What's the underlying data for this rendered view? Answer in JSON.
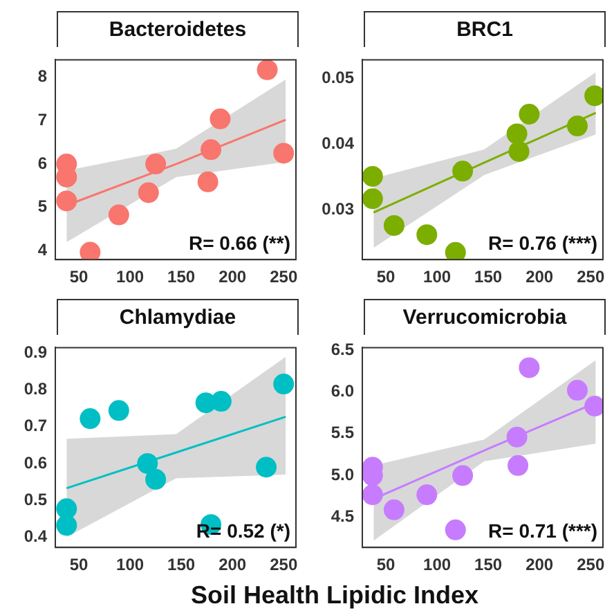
{
  "chart_data": [
    {
      "type": "scatter",
      "title": "Bacteroidetes",
      "xlim": [
        27,
        262
      ],
      "xticks": [
        50,
        100,
        150,
        200,
        250
      ],
      "ylim": [
        3.8,
        8.4
      ],
      "yticks": [
        4,
        5,
        6,
        7,
        8
      ],
      "line_style": "solid",
      "annotations": [
        "R= 0.66 (**)"
      ],
      "series": [
        {
          "marker": "circle",
          "color": "#f8766d",
          "x": [
            38,
            38,
            38,
            61,
            89,
            118,
            125,
            176,
            179,
            188,
            234,
            250
          ],
          "values": [
            6.0,
            5.7,
            5.15,
            3.97,
            4.83,
            5.34,
            6.0,
            5.59,
            6.33,
            7.04,
            8.17,
            6.25
          ]
        },
        {
          "type": "line",
          "color": "#f8766d",
          "x": [
            38,
            145,
            252
          ],
          "values": [
            5.05,
            6.0,
            7.02
          ],
          "lower": [
            4.2,
            5.7,
            6.05
          ],
          "upper": [
            5.85,
            6.35,
            7.95
          ]
        }
      ]
    },
    {
      "type": "scatter",
      "title": "BRC1",
      "xlim": [
        27,
        262
      ],
      "xticks": [
        50,
        100,
        150,
        200,
        250
      ],
      "ylim": [
        0.0224,
        0.0529
      ],
      "yticks": [
        0.03,
        0.04,
        0.05
      ],
      "line_style": "solid",
      "annotations": [
        "R= 0.76 (***)"
      ],
      "series": [
        {
          "marker": "circle",
          "color": "#7cae00",
          "x": [
            37,
            37,
            58,
            90,
            118,
            125,
            178,
            180,
            190,
            237,
            254
          ],
          "values": [
            0.0351,
            0.0317,
            0.0276,
            0.0262,
            0.0235,
            0.0359,
            0.0416,
            0.0389,
            0.0446,
            0.0428,
            0.0474
          ]
        },
        {
          "type": "line",
          "color": "#7cae00",
          "x": [
            38,
            146,
            255
          ],
          "values": [
            0.0296,
            0.0372,
            0.0448
          ],
          "lower": [
            0.0242,
            0.0353,
            0.0415
          ],
          "upper": [
            0.0348,
            0.0392,
            0.051
          ]
        }
      ]
    },
    {
      "type": "scatter",
      "title": "Chlamydiae",
      "xlim": [
        27,
        262
      ],
      "xticks": [
        50,
        100,
        150,
        200,
        250
      ],
      "ylim": [
        0.372,
        0.915
      ],
      "yticks": [
        0.4,
        0.5,
        0.6,
        0.7,
        0.8,
        0.9
      ],
      "line_style": "solid",
      "xlabel": "Soil Health Lipidic Index",
      "annotations": [
        "R= 0.52 (*)"
      ],
      "series": [
        {
          "marker": "circle",
          "color": "#00bfc4",
          "x": [
            38,
            38,
            61,
            89,
            117,
            125,
            174,
            179,
            189,
            233,
            250
          ],
          "values": [
            0.477,
            0.432,
            0.722,
            0.744,
            0.6,
            0.557,
            0.765,
            0.434,
            0.769,
            0.59,
            0.816
          ]
        },
        {
          "type": "line",
          "color": "#00bfc4",
          "x": [
            38,
            145,
            252
          ],
          "values": [
            0.533,
            0.63,
            0.727
          ],
          "lower": [
            0.4,
            0.56,
            0.57
          ],
          "upper": [
            0.667,
            0.68,
            0.89
          ]
        }
      ]
    },
    {
      "type": "scatter",
      "title": "Verrucomicrobia",
      "xlim": [
        27,
        262
      ],
      "xticks": [
        50,
        100,
        150,
        200,
        250
      ],
      "ylim": [
        4.14,
        6.53
      ],
      "yticks": [
        {
          "value": 4.5,
          "label": "4.5"
        },
        {
          "value": 5,
          "label": "5.0"
        },
        {
          "value": 5.5,
          "label": "5.5"
        },
        {
          "value": 6,
          "label": "6.0"
        },
        {
          "value": 6.5,
          "label": "6.5"
        }
      ],
      "line_style": "solid",
      "annotations": [
        "R= 0.71 (***)"
      ],
      "series": [
        {
          "marker": "circle",
          "color": "#c77cff",
          "x": [
            37,
            37,
            37,
            58,
            90,
            118,
            125,
            178,
            179,
            190,
            237,
            254
          ],
          "values": [
            5.1,
            5.0,
            4.77,
            4.59,
            4.77,
            4.35,
            5.0,
            5.46,
            5.12,
            6.29,
            6.02,
            5.83
          ]
        },
        {
          "type": "line",
          "color": "#c77cff",
          "x": [
            38,
            146,
            255
          ],
          "values": [
            4.72,
            5.3,
            5.87
          ],
          "lower": [
            4.22,
            5.17,
            5.38
          ],
          "upper": [
            5.12,
            5.43,
            6.38
          ]
        }
      ]
    }
  ]
}
